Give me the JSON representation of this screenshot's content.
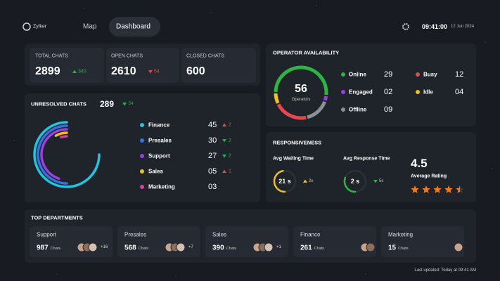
{
  "header": {
    "brand": "Zylker",
    "nav": [
      "Map",
      "Dashboard"
    ],
    "time": "09:41:00",
    "date": "12 Jun 2024"
  },
  "stats": [
    {
      "label": "TOTAL CHATS",
      "value": 2899,
      "change": {
        "value": 340,
        "trend": "up",
        "color": "#2fb344"
      }
    },
    {
      "label": "OPEN CHATS",
      "value": 2610,
      "change": {
        "value": 54,
        "trend": "down",
        "color": "#e5484d"
      }
    },
    {
      "label": "CLOSED CHATS",
      "value": 600
    }
  ],
  "unresolved": {
    "title": "UNRESOLVED CHATS",
    "value": 289,
    "change": {
      "value": 54,
      "trend": "down",
      "color": "#2fb344"
    },
    "items": [
      {
        "name": "Finance",
        "color": "#22c4e0",
        "count": 45,
        "change": {
          "value": 2,
          "trend": "up",
          "color": "#e5484d"
        }
      },
      {
        "name": "Presales",
        "color": "#3b6fe0",
        "count": 30,
        "change": {
          "value": 2,
          "trend": "down",
          "color": "#2fb344"
        }
      },
      {
        "name": "Support",
        "color": "#9b3fe0",
        "count": 27,
        "change": {
          "value": 2,
          "trend": "down",
          "color": "#2fb344"
        }
      },
      {
        "name": "Sales",
        "color": "#f0c020",
        "count": {
          "value": 5,
          "label": "05"
        },
        "change": {
          "value": 1,
          "trend": "up",
          "color": "#e5484d"
        }
      },
      {
        "name": "Marketing",
        "color": "#e03b9b",
        "count": {
          "value": 3,
          "label": "03"
        }
      }
    ]
  },
  "operators": {
    "title": "OPERATOR AVAILABILITY",
    "total": 56,
    "total_label": "Operators",
    "statuses": [
      {
        "name": "Online",
        "color": "#2fb344",
        "count": 29
      },
      {
        "name": "Engaged",
        "color": "#9b3fe0",
        "count": {
          "value": 2,
          "label": "02"
        }
      },
      {
        "name": "Offline",
        "color": "#8a8f98",
        "count": {
          "value": 9,
          "label": "09"
        }
      },
      {
        "name": "Busy",
        "color": "#e5484d",
        "count": 12
      },
      {
        "name": "Idle",
        "color": "#f0c020",
        "count": {
          "value": 4,
          "label": "04"
        }
      }
    ]
  },
  "responsiveness": {
    "title": "RESPONSIVENESS",
    "metrics": [
      {
        "label": "Avg Waiting Time",
        "value": "21 s",
        "color": "#f0c020",
        "change": {
          "value": "2s",
          "trend": "up",
          "color": "#f0c020"
        }
      },
      {
        "label": "Avg Response Time",
        "value": "2 s",
        "color": "#2fb344",
        "change": {
          "value": "5s",
          "trend": "down",
          "color": "#2fb344"
        }
      }
    ],
    "rating": 4.5,
    "rating_label": "Average Rating"
  },
  "top_departments": {
    "title": "TOP DEPARTMENTS",
    "unit": "Chats",
    "departments": [
      {
        "name": "Support",
        "count": 987,
        "extra": "+16"
      },
      {
        "name": "Presales",
        "count": 568,
        "extra": "+7"
      },
      {
        "name": "Sales",
        "count": 390,
        "extra": "+1"
      },
      {
        "name": "Finance",
        "count": 261
      },
      {
        "name": "Marketing",
        "count": 15
      }
    ]
  },
  "footer": "Last updated: Today at 09:41 AM"
}
